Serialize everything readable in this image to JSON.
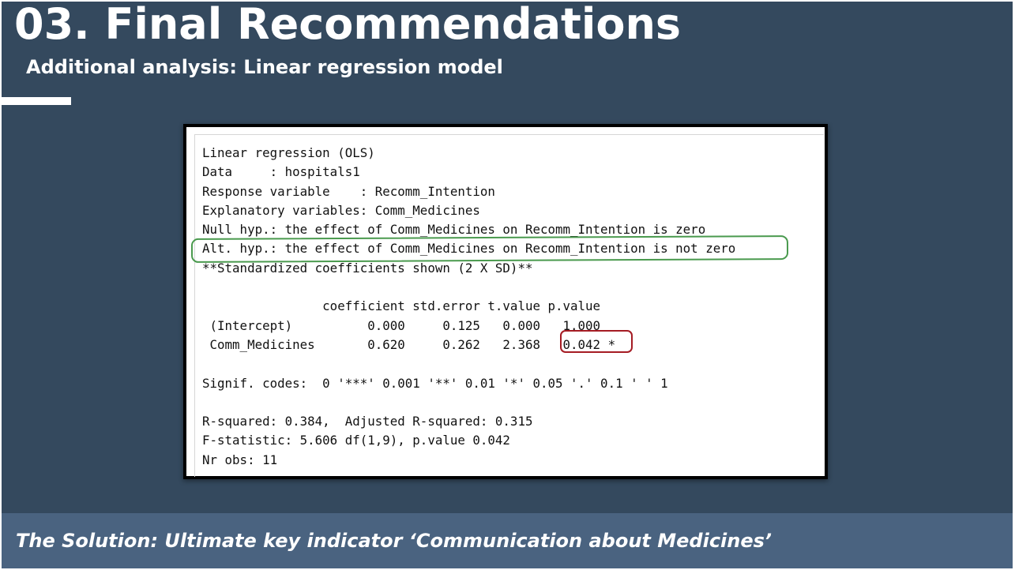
{
  "slide": {
    "title": "03. Final Recommendations",
    "subtitle": "Additional analysis: Linear regression model",
    "footer": "The Solution: Ultimate key indicator ‘Communication about Medicines’"
  },
  "output": {
    "header": [
      "Linear regression (OLS)",
      "Data     : hospitals1",
      "Response variable    : Recomm_Intention",
      "Explanatory variables: Comm_Medicines",
      "Null hyp.: the effect of Comm_Medicines on Recomm_Intention is zero",
      "Alt. hyp.: the effect of Comm_Medicines on Recomm_Intention is not zero",
      "**Standardized coefficients shown (2 X SD)**"
    ],
    "table_header": "                coefficient std.error t.value p.value",
    "rows": [
      " (Intercept)          0.000     0.125   0.000   1.000",
      " Comm_Medicines       0.620     0.262   2.368   0.042 *"
    ],
    "signif": "Signif. codes:  0 '***' 0.001 '**' 0.01 '*' 0.05 '.' 0.1 ' ' 1",
    "stats": [
      "R-squared: 0.384,  Adjusted R-squared: 0.315",
      "F-statistic: 5.606 df(1,9), p.value 0.042",
      "Nr obs: 11"
    ]
  },
  "colors": {
    "background": "#34495e",
    "footer_band": "#4a6380",
    "highlight_alt_hyp": "#4a9a4e",
    "highlight_p_value": "#a51c24"
  }
}
